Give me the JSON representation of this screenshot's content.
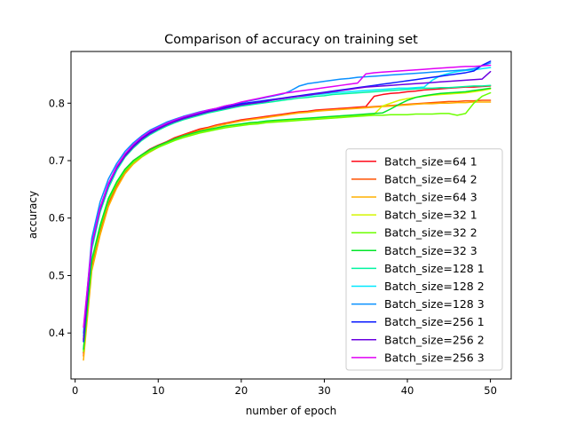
{
  "chart_data": {
    "type": "line",
    "title": "Comparison of accuracy on training set",
    "xlabel": "number of epoch",
    "ylabel": "accuracy",
    "xlim": [
      -0.5,
      52.5
    ],
    "ylim": [
      0.32,
      0.89
    ],
    "xticks": [
      0,
      10,
      20,
      30,
      40,
      50
    ],
    "xtick_labels": [
      "0",
      "10",
      "20",
      "30",
      "40",
      "50"
    ],
    "yticks": [
      0.4,
      0.5,
      0.6,
      0.7,
      0.8
    ],
    "ytick_labels": [
      "0.4",
      "0.5",
      "0.6",
      "0.7",
      "0.8"
    ],
    "grid": false,
    "legend_position": "lower-right",
    "x": [
      1,
      2,
      3,
      4,
      5,
      6,
      7,
      8,
      9,
      10,
      11,
      12,
      13,
      14,
      15,
      16,
      17,
      18,
      19,
      20,
      21,
      22,
      23,
      24,
      25,
      26,
      27,
      28,
      29,
      30,
      31,
      32,
      33,
      34,
      35,
      36,
      37,
      38,
      39,
      40,
      41,
      42,
      43,
      44,
      45,
      46,
      47,
      48,
      49,
      50
    ],
    "series": [
      {
        "name": "Batch_size=64 1",
        "color": "#ff0a1a",
        "values": [
          0.365,
          0.52,
          0.58,
          0.63,
          0.66,
          0.685,
          0.7,
          0.71,
          0.72,
          0.727,
          0.733,
          0.74,
          0.745,
          0.75,
          0.755,
          0.758,
          0.762,
          0.765,
          0.768,
          0.771,
          0.773,
          0.775,
          0.777,
          0.779,
          0.781,
          0.783,
          0.785,
          0.786,
          0.788,
          0.789,
          0.79,
          0.791,
          0.792,
          0.793,
          0.794,
          0.812,
          0.815,
          0.817,
          0.818,
          0.82,
          0.821,
          0.823,
          0.824,
          0.825,
          0.826,
          0.827,
          0.828,
          0.828,
          0.829,
          0.83
        ]
      },
      {
        "name": "Batch_size=64 2",
        "color": "#ff5200",
        "values": [
          0.36,
          0.515,
          0.575,
          0.625,
          0.655,
          0.68,
          0.697,
          0.708,
          0.717,
          0.725,
          0.732,
          0.739,
          0.744,
          0.749,
          0.754,
          0.757,
          0.761,
          0.764,
          0.767,
          0.77,
          0.772,
          0.774,
          0.776,
          0.778,
          0.78,
          0.782,
          0.784,
          0.785,
          0.787,
          0.788,
          0.789,
          0.79,
          0.791,
          0.792,
          0.793,
          0.794,
          0.795,
          0.796,
          0.797,
          0.798,
          0.799,
          0.8,
          0.801,
          0.802,
          0.803,
          0.803,
          0.804,
          0.804,
          0.805,
          0.805
        ]
      },
      {
        "name": "Batch_size=64 3",
        "color": "#ffb000",
        "values": [
          0.353,
          0.508,
          0.57,
          0.62,
          0.652,
          0.677,
          0.694,
          0.706,
          0.715,
          0.723,
          0.73,
          0.737,
          0.742,
          0.747,
          0.752,
          0.756,
          0.76,
          0.763,
          0.766,
          0.769,
          0.771,
          0.773,
          0.775,
          0.777,
          0.779,
          0.781,
          0.783,
          0.784,
          0.786,
          0.787,
          0.788,
          0.789,
          0.79,
          0.791,
          0.792,
          0.793,
          0.794,
          0.795,
          0.796,
          0.797,
          0.798,
          0.799,
          0.799,
          0.8,
          0.8,
          0.801,
          0.801,
          0.802,
          0.802,
          0.802
        ]
      },
      {
        "name": "Batch_size=32 1",
        "color": "#d4f500",
        "values": [
          0.37,
          0.525,
          0.585,
          0.632,
          0.662,
          0.684,
          0.699,
          0.709,
          0.718,
          0.725,
          0.731,
          0.737,
          0.742,
          0.746,
          0.75,
          0.753,
          0.756,
          0.759,
          0.761,
          0.763,
          0.765,
          0.766,
          0.768,
          0.769,
          0.77,
          0.771,
          0.772,
          0.773,
          0.774,
          0.775,
          0.776,
          0.777,
          0.778,
          0.779,
          0.78,
          0.781,
          0.795,
          0.8,
          0.805,
          0.808,
          0.81,
          0.812,
          0.814,
          0.815,
          0.816,
          0.817,
          0.818,
          0.82,
          0.822,
          0.825
        ]
      },
      {
        "name": "Batch_size=32 2",
        "color": "#6dff00",
        "values": [
          0.368,
          0.522,
          0.582,
          0.63,
          0.66,
          0.682,
          0.697,
          0.707,
          0.716,
          0.723,
          0.729,
          0.735,
          0.74,
          0.744,
          0.748,
          0.751,
          0.754,
          0.757,
          0.759,
          0.761,
          0.763,
          0.764,
          0.766,
          0.767,
          0.768,
          0.769,
          0.77,
          0.771,
          0.772,
          0.773,
          0.774,
          0.775,
          0.776,
          0.777,
          0.778,
          0.779,
          0.779,
          0.78,
          0.78,
          0.78,
          0.781,
          0.781,
          0.781,
          0.782,
          0.782,
          0.779,
          0.782,
          0.8,
          0.812,
          0.818
        ]
      },
      {
        "name": "Batch_size=32 3",
        "color": "#00e528",
        "values": [
          0.372,
          0.527,
          0.587,
          0.634,
          0.663,
          0.685,
          0.7,
          0.71,
          0.719,
          0.726,
          0.732,
          0.738,
          0.743,
          0.747,
          0.751,
          0.754,
          0.757,
          0.76,
          0.762,
          0.764,
          0.766,
          0.767,
          0.769,
          0.77,
          0.771,
          0.772,
          0.773,
          0.774,
          0.775,
          0.776,
          0.777,
          0.778,
          0.779,
          0.78,
          0.781,
          0.782,
          0.783,
          0.79,
          0.798,
          0.805,
          0.81,
          0.813,
          0.815,
          0.817,
          0.818,
          0.819,
          0.82,
          0.822,
          0.824,
          0.826
        ]
      },
      {
        "name": "Batch_size=128 1",
        "color": "#00f5a0",
        "values": [
          0.39,
          0.545,
          0.61,
          0.652,
          0.683,
          0.706,
          0.722,
          0.735,
          0.745,
          0.753,
          0.76,
          0.766,
          0.771,
          0.775,
          0.779,
          0.783,
          0.786,
          0.789,
          0.792,
          0.795,
          0.797,
          0.799,
          0.801,
          0.803,
          0.805,
          0.807,
          0.809,
          0.81,
          0.812,
          0.813,
          0.815,
          0.816,
          0.817,
          0.818,
          0.819,
          0.82,
          0.821,
          0.822,
          0.823,
          0.824,
          0.825,
          0.826,
          0.826,
          0.827,
          0.827,
          0.828,
          0.829,
          0.83,
          0.83,
          0.831
        ]
      },
      {
        "name": "Batch_size=128 2",
        "color": "#00e8ff",
        "values": [
          0.395,
          0.55,
          0.615,
          0.656,
          0.686,
          0.709,
          0.725,
          0.738,
          0.748,
          0.756,
          0.763,
          0.769,
          0.774,
          0.778,
          0.782,
          0.786,
          0.789,
          0.792,
          0.795,
          0.798,
          0.8,
          0.802,
          0.804,
          0.806,
          0.808,
          0.81,
          0.812,
          0.813,
          0.815,
          0.816,
          0.818,
          0.819,
          0.82,
          0.821,
          0.822,
          0.823,
          0.824,
          0.825,
          0.826,
          0.826,
          0.827,
          0.828,
          0.84,
          0.848,
          0.852,
          0.855,
          0.857,
          0.858,
          0.86,
          0.862
        ]
      },
      {
        "name": "Batch_size=128 3",
        "color": "#0a90ff",
        "values": [
          0.4,
          0.565,
          0.628,
          0.668,
          0.695,
          0.716,
          0.731,
          0.743,
          0.753,
          0.76,
          0.767,
          0.772,
          0.777,
          0.781,
          0.785,
          0.788,
          0.791,
          0.795,
          0.798,
          0.801,
          0.804,
          0.807,
          0.81,
          0.813,
          0.816,
          0.822,
          0.83,
          0.834,
          0.836,
          0.838,
          0.84,
          0.842,
          0.843,
          0.845,
          0.846,
          0.847,
          0.848,
          0.849,
          0.85,
          0.851,
          0.852,
          0.853,
          0.854,
          0.855,
          0.856,
          0.857,
          0.858,
          0.86,
          0.865,
          0.87
        ]
      },
      {
        "name": "Batch_size=256 1",
        "color": "#0a1aff",
        "values": [
          0.385,
          0.555,
          0.618,
          0.66,
          0.689,
          0.71,
          0.726,
          0.739,
          0.749,
          0.757,
          0.764,
          0.77,
          0.775,
          0.779,
          0.783,
          0.787,
          0.79,
          0.793,
          0.796,
          0.799,
          0.801,
          0.803,
          0.805,
          0.807,
          0.809,
          0.811,
          0.813,
          0.815,
          0.817,
          0.819,
          0.821,
          0.823,
          0.825,
          0.827,
          0.829,
          0.831,
          0.833,
          0.835,
          0.837,
          0.839,
          0.841,
          0.843,
          0.845,
          0.847,
          0.849,
          0.851,
          0.853,
          0.856,
          0.866,
          0.873
        ]
      },
      {
        "name": "Batch_size=256 2",
        "color": "#6a00e0",
        "values": [
          0.388,
          0.552,
          0.615,
          0.657,
          0.687,
          0.708,
          0.724,
          0.737,
          0.747,
          0.755,
          0.762,
          0.768,
          0.773,
          0.777,
          0.781,
          0.785,
          0.788,
          0.791,
          0.794,
          0.797,
          0.799,
          0.801,
          0.803,
          0.806,
          0.808,
          0.81,
          0.812,
          0.814,
          0.816,
          0.818,
          0.82,
          0.822,
          0.824,
          0.826,
          0.828,
          0.829,
          0.83,
          0.831,
          0.832,
          0.833,
          0.834,
          0.835,
          0.836,
          0.837,
          0.838,
          0.839,
          0.84,
          0.841,
          0.842,
          0.855
        ]
      },
      {
        "name": "Batch_size=256 3",
        "color": "#e000f5",
        "values": [
          0.41,
          0.555,
          0.618,
          0.66,
          0.69,
          0.712,
          0.728,
          0.741,
          0.751,
          0.758,
          0.765,
          0.771,
          0.776,
          0.78,
          0.784,
          0.788,
          0.791,
          0.795,
          0.798,
          0.802,
          0.805,
          0.808,
          0.811,
          0.814,
          0.817,
          0.819,
          0.821,
          0.823,
          0.825,
          0.827,
          0.829,
          0.831,
          0.833,
          0.835,
          0.851,
          0.853,
          0.854,
          0.855,
          0.856,
          0.857,
          0.858,
          0.859,
          0.86,
          0.861,
          0.862,
          0.863,
          0.864,
          0.864,
          0.865,
          0.866
        ]
      }
    ]
  }
}
